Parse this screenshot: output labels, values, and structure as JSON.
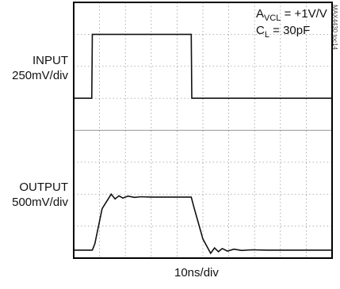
{
  "labels": {
    "input": "INPUT",
    "input_scale": "250mV/div",
    "output": "OUTPUT",
    "output_scale": "500mV/div",
    "time_scale": "10ns/div",
    "conditions_line1_prefix": "A",
    "conditions_line1_sub": "VCL",
    "conditions_line1_suffix": " = +1V/V",
    "conditions_line2_prefix": "C",
    "conditions_line2_sub": "L",
    "conditions_line2_suffix": " = 30pF",
    "figure_code": "MAX4430 toc14"
  },
  "colors": {
    "trace": "#111111",
    "grid": "#9a9a9a",
    "frame": "#000000"
  },
  "chart_data": {
    "type": "line",
    "xlabel": "10ns/div",
    "x_divisions": 10,
    "y_divisions": 8,
    "grid": true,
    "series": [
      {
        "name": "INPUT",
        "x": [
          0,
          0.7,
          0.72,
          4.55,
          4.57,
          10
        ],
        "y": [
          5.0,
          5.0,
          7.0,
          7.0,
          5.0,
          5.0
        ]
      },
      {
        "name": "OUTPUT",
        "x": [
          0,
          0.72,
          0.82,
          1.1,
          1.45,
          1.6,
          1.75,
          1.9,
          2.1,
          2.35,
          2.6,
          3.0,
          4.55,
          4.65,
          5.0,
          5.3,
          5.45,
          5.6,
          5.75,
          5.95,
          6.2,
          6.5,
          6.9,
          7.5,
          10
        ],
        "y": [
          0.25,
          0.25,
          0.45,
          1.55,
          2.0,
          1.85,
          1.95,
          1.88,
          1.94,
          1.9,
          1.92,
          1.91,
          1.91,
          1.6,
          0.6,
          0.15,
          0.32,
          0.2,
          0.3,
          0.22,
          0.28,
          0.24,
          0.26,
          0.25,
          0.25
        ]
      }
    ]
  }
}
